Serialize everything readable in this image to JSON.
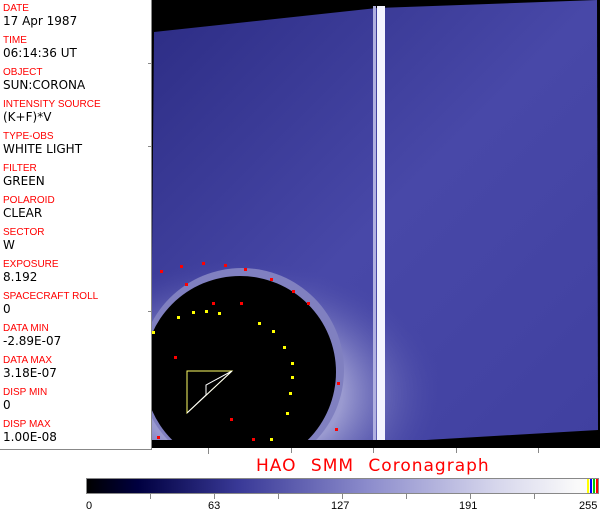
{
  "panel": [
    {
      "label": "DATE",
      "value": "17 Apr 1987"
    },
    {
      "label": "TIME",
      "value": "06:14:36 UT"
    },
    {
      "label": "OBJECT",
      "value": "SUN:CORONA"
    },
    {
      "label": "INTENSITY SOURCE",
      "value": "(K+F)*V"
    },
    {
      "label": "TYPE-OBS",
      "value": "WHITE LIGHT"
    },
    {
      "label": "FILTER",
      "value": "GREEN"
    },
    {
      "label": "POLAROID",
      "value": "CLEAR"
    },
    {
      "label": "SECTOR",
      "value": "W"
    },
    {
      "label": "EXPOSURE",
      "value": "8.192"
    },
    {
      "label": "SPACECRAFT ROLL",
      "value": "0"
    },
    {
      "label": "DATA MIN",
      "value": "-2.89E-07"
    },
    {
      "label": "DATA MAX",
      "value": "3.18E-07"
    },
    {
      "label": "DISP MIN",
      "value": "0"
    },
    {
      "label": "DISP MAX",
      "value": "1.00E-08"
    }
  ],
  "title": "HAO  SMM Coronagraph",
  "colorbar": {
    "ticks": [
      "0",
      "63",
      "127",
      "191",
      "255"
    ]
  },
  "colors": {
    "label": "#ff0000",
    "corona": "#3c3ca0"
  }
}
